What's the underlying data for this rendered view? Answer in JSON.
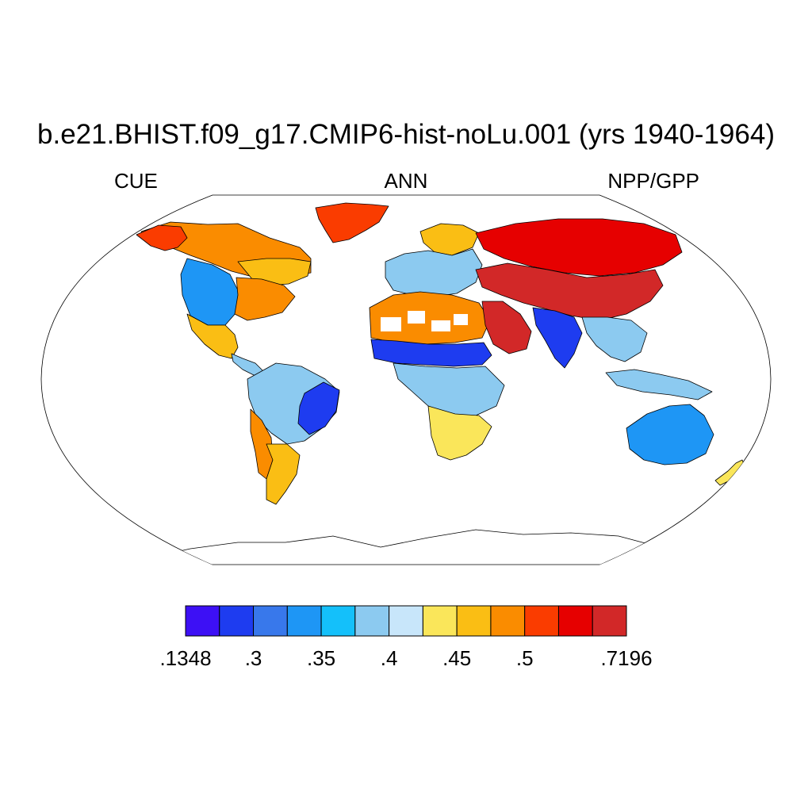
{
  "title": "b.e21.BHIST.f09_g17.CMIP6-hist-noLu.001 (yrs 1940-1964)",
  "subtitle_left": "CUE",
  "subtitle_center": "ANN",
  "subtitle_right": "NPP/GPP",
  "projection": "Robinson",
  "colorbar": {
    "colors": [
      "#3d10f5",
      "#1e3cf0",
      "#3878eb",
      "#1e96f5",
      "#14c0fa",
      "#8ccaf0",
      "#c8e6fa",
      "#fae65a",
      "#fabe14",
      "#fa8c00",
      "#fa3c00",
      "#e60000",
      "#d22828"
    ],
    "labels": [
      {
        "text": ".1348",
        "index": 0
      },
      {
        "text": ".3",
        "index": 2
      },
      {
        "text": ".35",
        "index": 4
      },
      {
        "text": ".4",
        "index": 6
      },
      {
        "text": ".45",
        "index": 8
      },
      {
        "text": ".5",
        "index": 10
      },
      {
        "text": ".7196",
        "index": 13
      }
    ]
  },
  "regions": [
    {
      "name": "canada-north",
      "color": "#fa8c00"
    },
    {
      "name": "alaska",
      "color": "#fa3c00"
    },
    {
      "name": "eastern-canada",
      "color": "#fabe14"
    },
    {
      "name": "western-us",
      "color": "#1e96f5"
    },
    {
      "name": "eastern-us",
      "color": "#fa8c00"
    },
    {
      "name": "mexico",
      "color": "#fabe14"
    },
    {
      "name": "central-america",
      "color": "#8ccaf0"
    },
    {
      "name": "amazon",
      "color": "#8ccaf0"
    },
    {
      "name": "brazil-east",
      "color": "#1e3cf0"
    },
    {
      "name": "andes",
      "color": "#fa8c00"
    },
    {
      "name": "patagonia",
      "color": "#fabe14"
    },
    {
      "name": "europe",
      "color": "#8ccaf0"
    },
    {
      "name": "scandinavia",
      "color": "#fabe14"
    },
    {
      "name": "siberia",
      "color": "#e60000"
    },
    {
      "name": "central-asia",
      "color": "#d22828"
    },
    {
      "name": "sahara",
      "color": "#fa8c00"
    },
    {
      "name": "sahel-band",
      "color": "#1e3cf0"
    },
    {
      "name": "arabia",
      "color": "#d22828"
    },
    {
      "name": "central-africa",
      "color": "#8ccaf0"
    },
    {
      "name": "southern-africa",
      "color": "#fae65a"
    },
    {
      "name": "india",
      "color": "#1e3cf0"
    },
    {
      "name": "southeast-asia",
      "color": "#8ccaf0"
    },
    {
      "name": "indonesia",
      "color": "#8ccaf0"
    },
    {
      "name": "australia",
      "color": "#1e96f5"
    },
    {
      "name": "new-zealand",
      "color": "#fae65a"
    },
    {
      "name": "greenland",
      "color": "#fa3c00"
    }
  ]
}
